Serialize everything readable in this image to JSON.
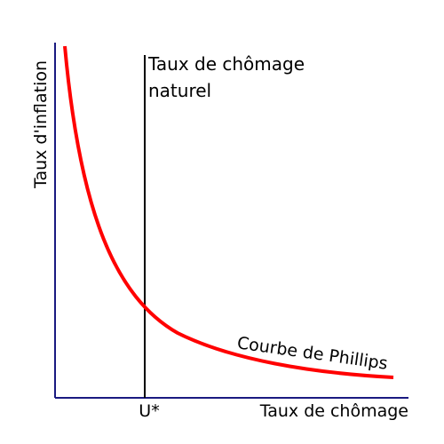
{
  "axes": {
    "y_label": "Taux d'inflation",
    "x_label": "Taux de chômage"
  },
  "natural_rate": {
    "label_lines": [
      "Taux de chômage",
      "naturel"
    ],
    "marker": "U*"
  },
  "curve_label": "Courbe de Phillips"
}
